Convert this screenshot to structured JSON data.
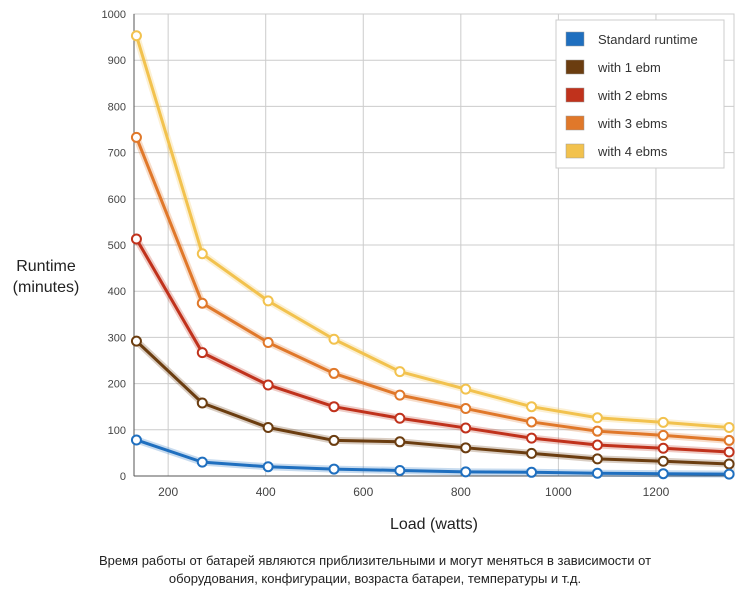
{
  "chart_data": {
    "type": "line",
    "title": "",
    "ylabel_lines": [
      "Runtime",
      "(minutes)"
    ],
    "xlabel": "Load (watts)",
    "xlim": [
      130,
      1360
    ],
    "ylim": [
      0,
      1000
    ],
    "x_ticks": [
      200,
      400,
      600,
      800,
      1000,
      1200
    ],
    "y_ticks": [
      0,
      100,
      200,
      300,
      400,
      500,
      600,
      700,
      800,
      900,
      1000
    ],
    "grid": true,
    "legend_position": "top-right",
    "x": [
      135,
      270,
      405,
      540,
      675,
      810,
      945,
      1080,
      1215,
      1350
    ],
    "series": [
      {
        "name": "Standard runtime",
        "color": "#1f6fbf",
        "values": [
          78,
          30,
          20,
          15,
          12,
          9,
          8,
          6,
          5,
          4
        ]
      },
      {
        "name": "with 1 ebm",
        "color": "#6b3d10",
        "values": [
          292,
          158,
          105,
          77,
          74,
          61,
          49,
          37,
          32,
          26
        ]
      },
      {
        "name": "with 2 ebms",
        "color": "#c0321c",
        "values": [
          513,
          267,
          197,
          150,
          125,
          104,
          82,
          67,
          60,
          52
        ]
      },
      {
        "name": "with 3 ebms",
        "color": "#e0782a",
        "values": [
          733,
          374,
          289,
          222,
          175,
          146,
          117,
          97,
          88,
          77
        ]
      },
      {
        "name": "with 4 ebms",
        "color": "#f2c24e",
        "values": [
          953,
          481,
          379,
          296,
          226,
          188,
          150,
          126,
          116,
          105
        ]
      }
    ]
  },
  "caption": {
    "line1": "Время работы от батарей являются приблизительными и могут меняться в зависимости от",
    "line2": "оборудования, конфигурации, возраста батареи, температуры и т.д."
  }
}
